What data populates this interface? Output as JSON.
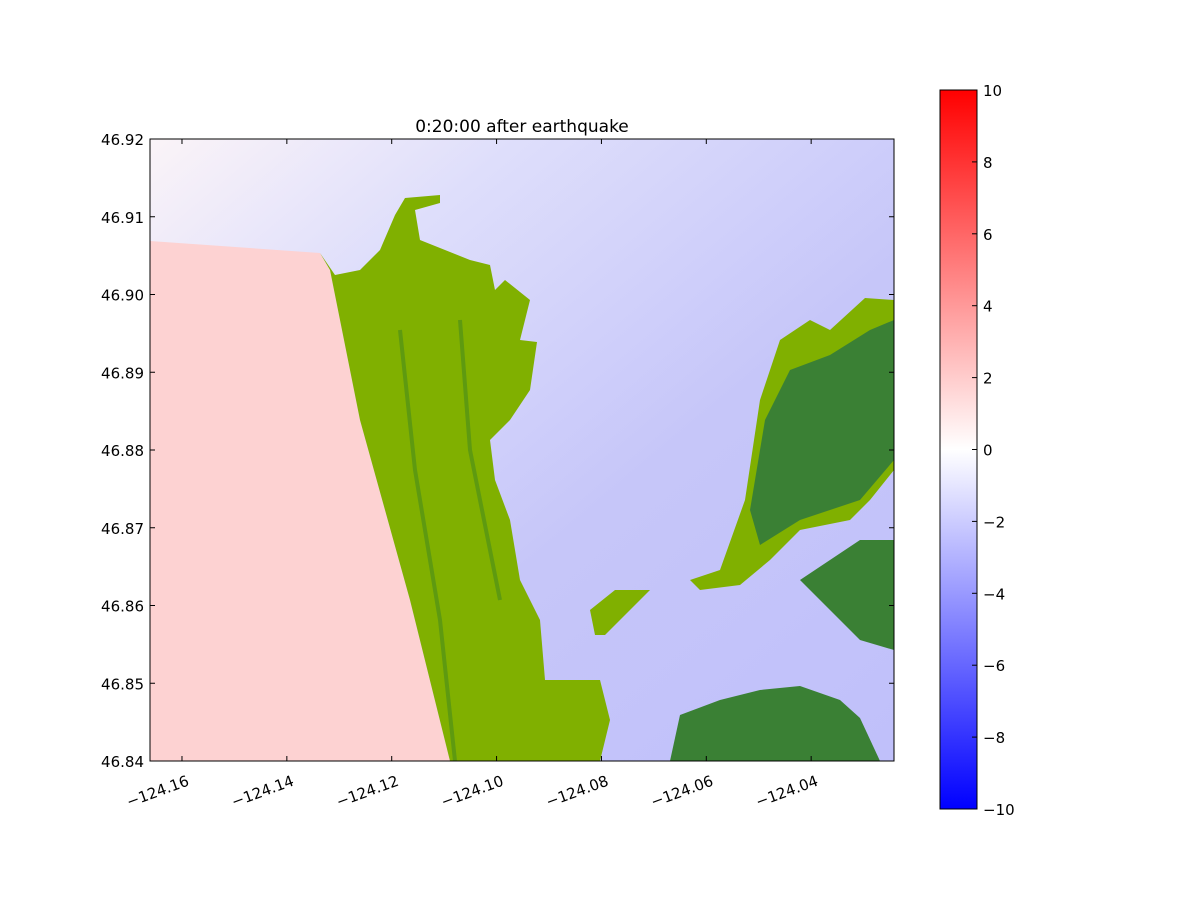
{
  "chart_data": {
    "type": "heatmap",
    "title": "0:20:00 after earthquake",
    "xlabel": "",
    "ylabel": "",
    "xlim": [
      -124.1661,
      -124.0242
    ],
    "ylim": [
      46.84,
      46.92
    ],
    "x_ticks": [
      -124.16,
      -124.14,
      -124.12,
      -124.1,
      -124.08,
      -124.06,
      -124.04
    ],
    "x_tick_labels": [
      "−124.16",
      "−124.14",
      "−124.12",
      "−124.10",
      "−124.08",
      "−124.06",
      "−124.04"
    ],
    "y_ticks": [
      46.84,
      46.85,
      46.86,
      46.87,
      46.88,
      46.89,
      46.9,
      46.91,
      46.92
    ],
    "y_tick_labels": [
      "46.84",
      "46.85",
      "46.86",
      "46.87",
      "46.88",
      "46.89",
      "46.90",
      "46.91",
      "46.92"
    ],
    "colorbar": {
      "range": [
        -10,
        10
      ],
      "colormap": "bwr",
      "ticks": [
        -10,
        -8,
        -6,
        -4,
        -2,
        0,
        2,
        4,
        6,
        8,
        10
      ],
      "tick_labels": [
        "−10",
        "−8",
        "−6",
        "−4",
        "−2",
        "0",
        "2",
        "4",
        "6",
        "8",
        "10"
      ]
    },
    "colors": {
      "offshore": "#fdd0d0",
      "bay": "#c4c4f8",
      "land_low": "#80b000",
      "land_high": "#3a8034"
    },
    "grid": false
  }
}
